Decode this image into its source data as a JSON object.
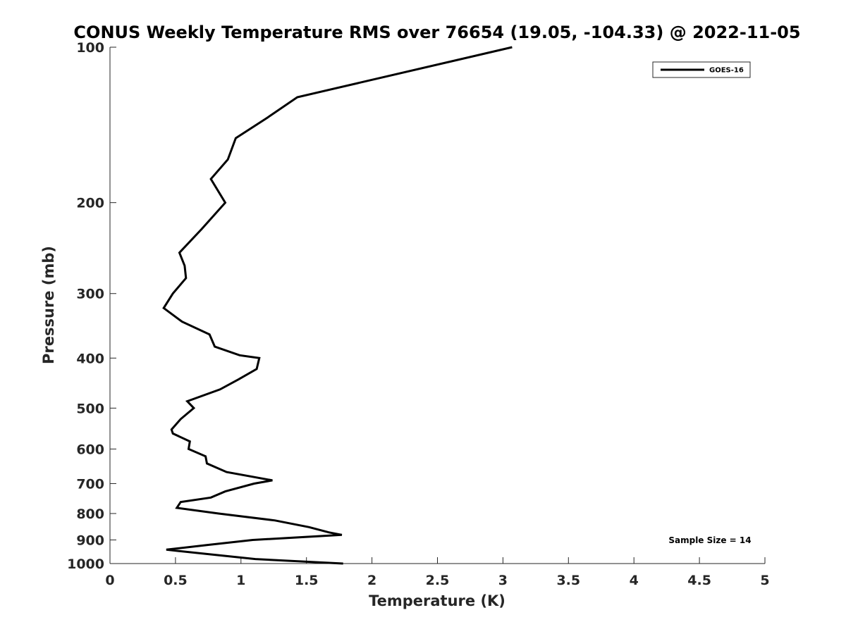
{
  "chart_data": {
    "type": "line",
    "title": "CONUS Weekly Temperature RMS over 76654 (19.05, -104.33) @ 2022-11-05",
    "xlabel": "Temperature (K)",
    "ylabel": "Pressure (mb)",
    "xlim": [
      0,
      5
    ],
    "ylim": [
      100,
      1000
    ],
    "y_scale": "log",
    "y_reversed": true,
    "x_ticks": [
      "0",
      "0.5",
      "1",
      "1.5",
      "2",
      "2.5",
      "3",
      "3.5",
      "4",
      "4.5",
      "5"
    ],
    "y_ticks": [
      "100",
      "200",
      "300",
      "400",
      "500",
      "600",
      "700",
      "800",
      "900",
      "1000"
    ],
    "grid": false,
    "legend_position": "top-right",
    "annotation": "Sample Size = 14",
    "series": [
      {
        "name": "GOES-16",
        "color": "#000000",
        "points": [
          {
            "t": 3.07,
            "p": 100
          },
          {
            "t": 1.43,
            "p": 125
          },
          {
            "t": 1.2,
            "p": 137
          },
          {
            "t": 0.96,
            "p": 150
          },
          {
            "t": 0.9,
            "p": 165
          },
          {
            "t": 0.77,
            "p": 180
          },
          {
            "t": 0.88,
            "p": 200
          },
          {
            "t": 0.7,
            "p": 225
          },
          {
            "t": 0.53,
            "p": 250
          },
          {
            "t": 0.57,
            "p": 265
          },
          {
            "t": 0.58,
            "p": 280
          },
          {
            "t": 0.48,
            "p": 300
          },
          {
            "t": 0.41,
            "p": 320
          },
          {
            "t": 0.55,
            "p": 340
          },
          {
            "t": 0.76,
            "p": 360
          },
          {
            "t": 0.8,
            "p": 380
          },
          {
            "t": 0.99,
            "p": 395
          },
          {
            "t": 1.14,
            "p": 400
          },
          {
            "t": 1.12,
            "p": 420
          },
          {
            "t": 0.98,
            "p": 440
          },
          {
            "t": 0.84,
            "p": 460
          },
          {
            "t": 0.59,
            "p": 485
          },
          {
            "t": 0.64,
            "p": 500
          },
          {
            "t": 0.54,
            "p": 525
          },
          {
            "t": 0.47,
            "p": 550
          },
          {
            "t": 0.48,
            "p": 560
          },
          {
            "t": 0.61,
            "p": 580
          },
          {
            "t": 0.6,
            "p": 600
          },
          {
            "t": 0.73,
            "p": 620
          },
          {
            "t": 0.74,
            "p": 640
          },
          {
            "t": 0.89,
            "p": 665
          },
          {
            "t": 1.24,
            "p": 690
          },
          {
            "t": 1.1,
            "p": 700
          },
          {
            "t": 0.88,
            "p": 725
          },
          {
            "t": 0.77,
            "p": 745
          },
          {
            "t": 0.54,
            "p": 760
          },
          {
            "t": 0.51,
            "p": 780
          },
          {
            "t": 0.83,
            "p": 800
          },
          {
            "t": 1.26,
            "p": 825
          },
          {
            "t": 1.52,
            "p": 850
          },
          {
            "t": 1.67,
            "p": 870
          },
          {
            "t": 1.77,
            "p": 880
          },
          {
            "t": 1.09,
            "p": 900
          },
          {
            "t": 0.75,
            "p": 920
          },
          {
            "t": 0.43,
            "p": 940
          },
          {
            "t": 0.77,
            "p": 960
          },
          {
            "t": 1.11,
            "p": 980
          },
          {
            "t": 1.78,
            "p": 1000
          }
        ]
      }
    ]
  }
}
